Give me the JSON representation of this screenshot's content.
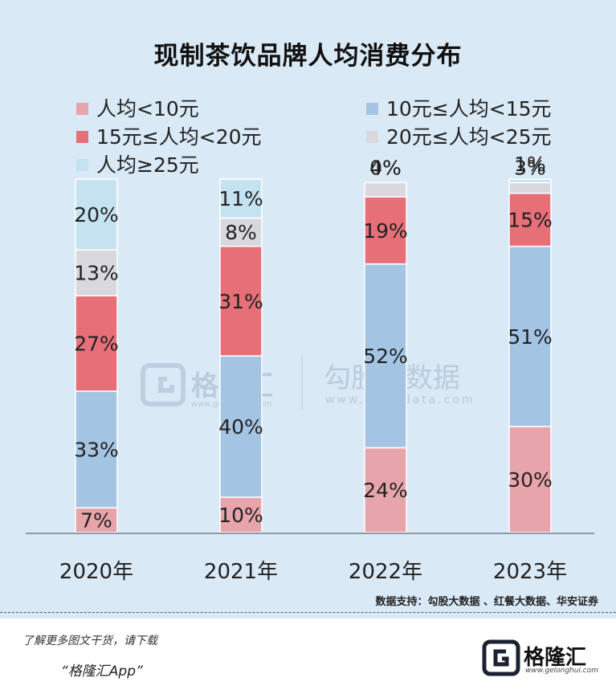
{
  "footer": {
    "source": "数据支持：勾股大数据 、红餐大数据、华安证券",
    "promo_line1": "了解更多图文干货，请下载",
    "promo_line2": "“格隆汇App”",
    "logo_text": "格隆汇",
    "logo_url": "www.gelonghui.com"
  },
  "watermark": {
    "brand1": "格隆汇",
    "brand1_url": "www.gelonghui.com",
    "brand2": "勾股大数据",
    "brand2_url": "www.gogudata.com"
  },
  "chart_data": {
    "type": "bar",
    "stacked": true,
    "title": "现制茶饮品牌人均消费分布",
    "categories": [
      "2020年",
      "2021年",
      "2022年",
      "2023年"
    ],
    "series": [
      {
        "name": "人均<10元",
        "color": "#e8a4ab",
        "values": [
          7,
          10,
          24,
          30
        ],
        "labels": [
          "7%",
          "10%",
          "24%",
          "30%"
        ]
      },
      {
        "name": "10元≤人均<15元",
        "color": "#a4c4e4",
        "values": [
          33,
          40,
          52,
          51
        ],
        "labels": [
          "33%",
          "40%",
          "52%",
          "51%"
        ]
      },
      {
        "name": "15元≤人均<20元",
        "color": "#e66f78",
        "values": [
          27,
          31,
          19,
          15
        ],
        "labels": [
          "27%",
          "31%",
          "19%",
          "15%"
        ]
      },
      {
        "name": "20元≤人均<25元",
        "color": "#d8d8de",
        "values": [
          13,
          8,
          4,
          3
        ],
        "labels": [
          "13%",
          "8%",
          "4%",
          "3%"
        ]
      },
      {
        "name": "人均≥25元",
        "color": "#c4e2f0",
        "values": [
          20,
          11,
          0,
          1
        ],
        "labels": [
          "20%",
          "11%",
          "0%",
          "1%"
        ]
      }
    ],
    "ylim": [
      0,
      100
    ],
    "legend_position": "top",
    "grid": false
  }
}
